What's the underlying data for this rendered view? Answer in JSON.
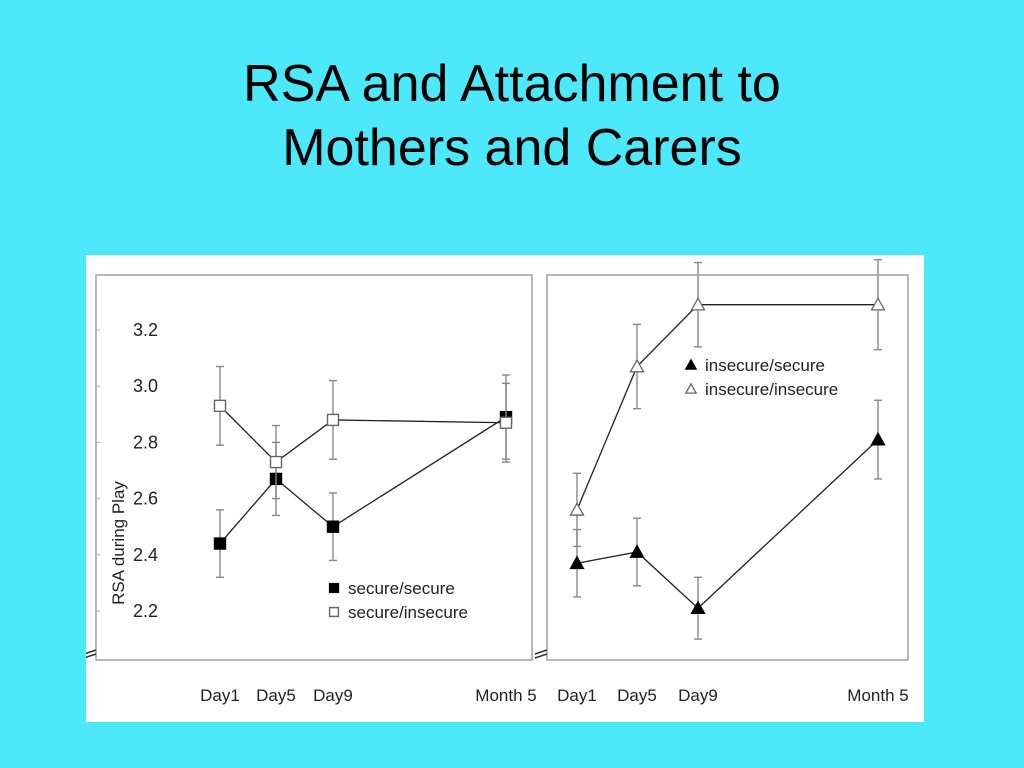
{
  "slide": {
    "title_line1": "RSA and Attachment to",
    "title_line2": "Mothers and Carers"
  },
  "colors": {
    "background": "#4de9fb",
    "figure_bg": "#ffffff",
    "frame": "#a0a0a0",
    "line": "#222222",
    "error_bar": "#888888"
  },
  "chart_data": [
    {
      "type": "line",
      "ylabel": "RSA during Play",
      "yticks": [
        "3.2",
        "3.0",
        "2.8",
        "2.6",
        "2.4",
        "2.2"
      ],
      "ylim": [
        2.05,
        3.35
      ],
      "categories": [
        "Day1",
        "Day5",
        "Day9",
        "Month 5"
      ],
      "legend_position": "bottom-right",
      "series": [
        {
          "name": "secure/secure",
          "marker": "filled-square",
          "values": [
            2.44,
            2.67,
            2.5,
            2.89
          ],
          "error": [
            0.12,
            0.13,
            0.12,
            0.15
          ]
        },
        {
          "name": "secure/insecure",
          "marker": "open-square",
          "values": [
            2.93,
            2.73,
            2.88,
            2.87
          ],
          "error": [
            0.14,
            0.13,
            0.14,
            0.14
          ]
        }
      ]
    },
    {
      "type": "line",
      "ylim": [
        2.05,
        3.35
      ],
      "categories": [
        "Day1",
        "Day5",
        "Day9",
        "Month 5"
      ],
      "legend_position": "top-right",
      "series": [
        {
          "name": "insecure/secure",
          "marker": "filled-triangle",
          "values": [
            2.37,
            2.41,
            2.21,
            2.81
          ],
          "error": [
            0.12,
            0.12,
            0.11,
            0.14
          ]
        },
        {
          "name": "insecure/insecure",
          "marker": "open-triangle",
          "values": [
            2.56,
            3.07,
            3.29,
            3.29
          ],
          "error": [
            0.13,
            0.15,
            0.15,
            0.16
          ]
        }
      ]
    }
  ]
}
